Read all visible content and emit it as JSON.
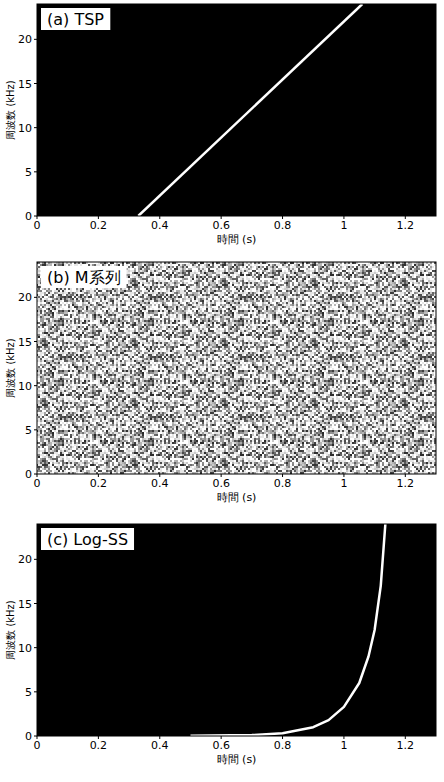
{
  "chart_data": [
    {
      "type": "line",
      "title": "(a) TSP",
      "x_label": "時間 (s)",
      "y_label": "周波数 (kHz)",
      "xlim": [
        0,
        1.3
      ],
      "ylim": [
        0,
        24
      ],
      "xticks": [
        0,
        0.2,
        0.4,
        0.6,
        0.8,
        1,
        1.2
      ],
      "yticks": [
        0,
        5,
        10,
        15,
        20
      ],
      "x": [
        0.33,
        1.06
      ],
      "values": [
        0,
        24
      ],
      "color": "#ffffff"
    },
    {
      "type": "noise",
      "title": "(b) M系列",
      "x_label": "時間 (s)",
      "y_label": "周波数 (kHz)",
      "xlim": [
        0,
        1.3
      ],
      "ylim": [
        0,
        24
      ],
      "xticks": [
        0,
        0.2,
        0.4,
        0.6,
        0.8,
        1,
        1.2
      ],
      "yticks": [
        0,
        5,
        10,
        15,
        20
      ]
    },
    {
      "type": "line",
      "title": "(c) Log-SS",
      "x_label": "時間 (s)",
      "y_label": "周波数 (kHz)",
      "xlim": [
        0,
        1.3
      ],
      "ylim": [
        0,
        24
      ],
      "xticks": [
        0,
        0.2,
        0.4,
        0.6,
        0.8,
        1,
        1.2
      ],
      "yticks": [
        0,
        5,
        10,
        15,
        20
      ],
      "x": [
        0.5,
        0.7,
        0.8,
        0.9,
        0.95,
        1.0,
        1.05,
        1.08,
        1.1,
        1.12,
        1.135
      ],
      "values": [
        0.02,
        0.1,
        0.3,
        1.0,
        1.8,
        3.3,
        6,
        9,
        12,
        17,
        24
      ],
      "color": "#ffffff"
    }
  ]
}
